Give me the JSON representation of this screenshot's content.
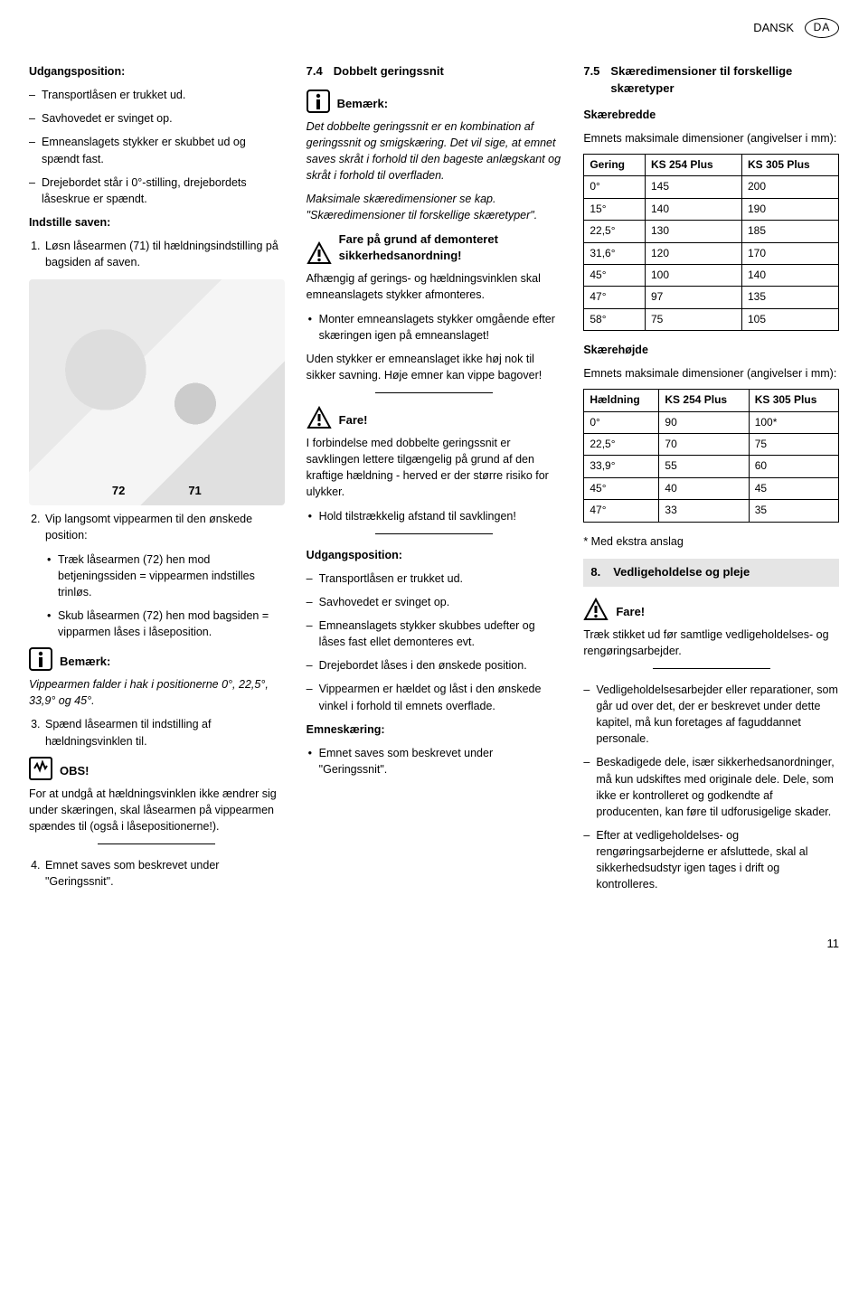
{
  "header": {
    "lang": "DANSK",
    "code": "DA"
  },
  "col1": {
    "udgangs_title": "Udgangsposition:",
    "udgangs_items": [
      "Transportlåsen er trukket ud.",
      "Savhovedet er svinget op.",
      "Emneanslagets stykker er skubbet ud og spændt fast.",
      "Drejebordet står i 0°-stilling, drejebordets låseskrue er spændt."
    ],
    "indstille_title": "Indstille saven:",
    "step1": "Løsn låsearmen (71) til hældningsindstilling på bagsiden af saven.",
    "fig_labels": {
      "a": "72",
      "b": "71"
    },
    "step2_lead": "Vip langsomt vippearmen til den ønskede position:",
    "step2_sub": [
      "Træk låsearmen (72) hen mod betjeningssiden = vippearmen indstilles trinløs.",
      "Skub låsearmen (72) hen mod bagsiden = vipparmen låses i låseposition."
    ],
    "note_label": "Bemærk:",
    "note_text": "Vippearmen falder i hak i positionerne 0°, 22,5°, 33,9° og 45°.",
    "step3": "Spænd låsearmen til indstilling af hældningsvinklen til.",
    "obs_label": "OBS!",
    "obs_text": "For at undgå at hældningsvinklen ikke ændrer sig under skæringen, skal låsearmen på vippearmen spændes til (også i låsepositionerne!).",
    "step4": "Emnet saves som beskrevet under \"Geringssnit\"."
  },
  "col2": {
    "h74_num": "7.4",
    "h74_title": "Dobbelt geringssnit",
    "note_label": "Bemærk:",
    "note_text": "Det dobbelte geringssnit er en kombination af geringssnit og smigskæring. Det vil sige, at emnet saves skråt i forhold til den bageste anlægskant og skråt i forhold til overfladen.",
    "max_text": "Maksimale skæredimensioner se kap. \"Skæredimensioner til forskellige skæretyper\".",
    "warn1_label": "Fare på grund af demonteret sikkerhedsanordning!",
    "warn1_p1": "Afhængig af gerings- og hældningsvinklen skal emneanslagets stykker afmonteres.",
    "warn1_b1": "Monter emneanslagets stykker omgående efter skæringen igen på emneanslaget!",
    "warn1_p2": "Uden stykker er emneanslaget ikke høj nok til sikker savning. Høje emner kan vippe bagover!",
    "warn2_label": "Fare!",
    "warn2_p1": "I forbindelse med dobbelte geringssnit er savklingen lettere tilgængelig på grund af den kraftige hældning - herved er der større risiko for ulykker.",
    "warn2_b1": "Hold tilstrækkelig afstand til savklingen!",
    "udgangs_title": "Udgangsposition:",
    "udgangs_items": [
      "Transportlåsen er trukket ud.",
      "Savhovedet er svinget op.",
      "Emneanslagets stykker skubbes udefter og låses fast ellet demonteres evt.",
      "Drejebordet låses i den ønskede position.",
      "Vippearmen er hældet og låst i den ønskede vinkel i forhold til emnets overflade."
    ],
    "emne_title": "Emneskæring:",
    "emne_b1": "Emnet saves som beskrevet under \"Geringssnit\"."
  },
  "col3": {
    "h75_num": "7.5",
    "h75_title": "Skæredimensioner til forskellige skæretyper",
    "skbredde_title": "Skærebredde",
    "skbredde_lead": "Emnets maksimale dimensioner (angivelser i mm):",
    "table1": {
      "headers": [
        "Gering",
        "KS 254 Plus",
        "KS 305 Plus"
      ],
      "rows": [
        [
          "0°",
          "145",
          "200"
        ],
        [
          "15°",
          "140",
          "190"
        ],
        [
          "22,5°",
          "130",
          "185"
        ],
        [
          "31,6°",
          "120",
          "170"
        ],
        [
          "45°",
          "100",
          "140"
        ],
        [
          "47°",
          "97",
          "135"
        ],
        [
          "58°",
          "75",
          "105"
        ]
      ]
    },
    "skhojde_title": "Skærehøjde",
    "skhojde_lead": "Emnets maksimale dimensioner (angivelser i mm):",
    "table2": {
      "headers": [
        "Hældning",
        "KS 254 Plus",
        "KS 305 Plus"
      ],
      "rows": [
        [
          "0°",
          "90",
          "100*"
        ],
        [
          "22,5°",
          "70",
          "75"
        ],
        [
          "33,9°",
          "55",
          "60"
        ],
        [
          "45°",
          "40",
          "45"
        ],
        [
          "47°",
          "33",
          "35"
        ]
      ]
    },
    "footnote": "* Med ekstra anslag",
    "sec8_num": "8.",
    "sec8_title": "Vedligeholdelse og pleje",
    "warn_label": "Fare!",
    "warn_text": "Træk stikket ud før samtlige vedligeholdelses- og rengøringsarbejder.",
    "list": [
      "Vedligeholdelsesarbejder eller reparationer, som går ud over det, der er beskrevet under dette kapitel, må kun foretages af faguddannet personale.",
      "Beskadigede dele, især sikkerhedsanordninger, må kun udskiftes med originale dele. Dele, som ikke er kontrolleret og godkendte af producenten, kan føre til udforusigelige skader.",
      "Efter at vedligeholdelses- og rengøringsarbejderne er afsluttede, skal al sikkerhedsudstyr igen tages i drift og kontrolleres."
    ]
  },
  "page_number": "11"
}
